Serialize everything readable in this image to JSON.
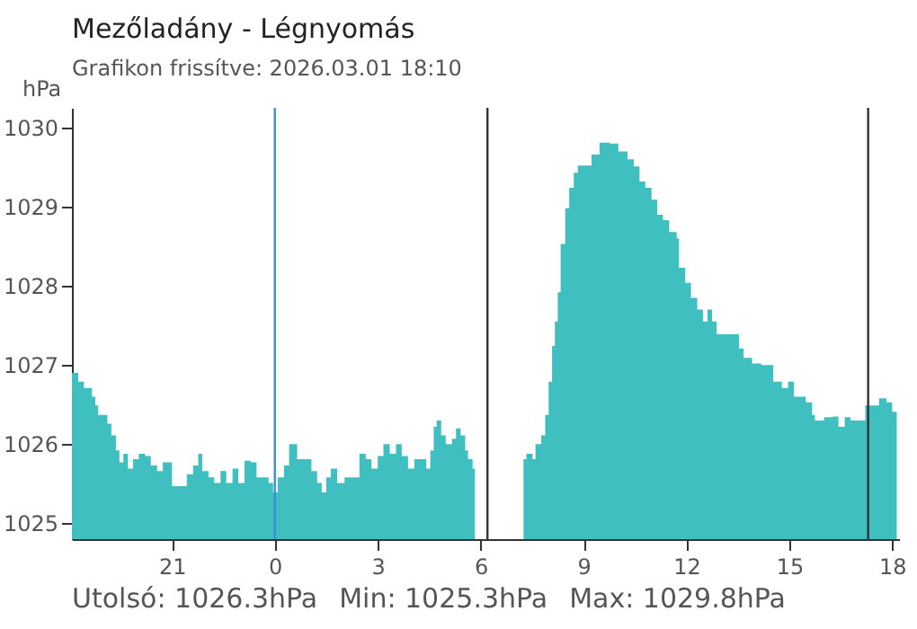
{
  "chart_data": {
    "type": "area",
    "title": "Mezőladány - Légnyomás",
    "subtitle": "Grafikon frissítve: 2026.03.01 18:10",
    "ylabel": "hPa",
    "annotations": [
      "Utolsó: 1026.3hPa",
      "Min: 1025.3hPa",
      "Max: 1029.8hPa"
    ],
    "x": [
      "2026-02-28T18:05",
      "2026-02-28T18:11",
      "2026-02-28T18:16",
      "2026-02-28T18:26",
      "2026-02-28T18:37",
      "2026-02-28T18:40",
      "2026-02-28T18:46",
      "2026-02-28T18:51",
      "2026-02-28T18:58",
      "2026-02-28T19:07",
      "2026-02-28T19:14",
      "2026-02-28T19:22",
      "2026-02-28T19:28",
      "2026-02-28T19:35",
      "2026-02-28T19:43",
      "2026-02-28T19:52",
      "2026-02-28T20:02",
      "2026-02-28T20:13",
      "2026-02-28T20:23",
      "2026-02-28T20:34",
      "2026-02-28T20:44",
      "2026-02-28T21:00",
      "2026-02-28T21:16",
      "2026-02-28T21:26",
      "2026-02-28T21:37",
      "2026-02-28T21:46",
      "2026-02-28T21:53",
      "2026-02-28T22:04",
      "2026-02-28T22:14",
      "2026-02-28T22:25",
      "2026-02-28T22:35",
      "2026-02-28T22:46",
      "2026-02-28T22:56",
      "2026-02-28T23:07",
      "2026-02-28T23:18",
      "2026-02-28T23:28",
      "2026-02-28T23:39",
      "2026-02-28T23:49",
      "2026-02-28T23:57",
      "2026-03-01T00:05",
      "2026-03-01T00:16",
      "2026-03-01T00:25",
      "2026-03-01T00:32",
      "2026-03-01T00:39",
      "2026-03-01T00:53",
      "2026-03-01T01:04",
      "2026-03-01T01:14",
      "2026-03-01T01:22",
      "2026-03-01T01:30",
      "2026-03-01T01:38",
      "2026-03-01T01:49",
      "2026-03-01T02:02",
      "2026-03-01T02:17",
      "2026-03-01T02:28",
      "2026-03-01T02:39",
      "2026-03-01T02:49",
      "2026-03-01T03:00",
      "2026-03-01T03:10",
      "2026-03-01T03:21",
      "2026-03-01T03:32",
      "2026-03-01T03:42",
      "2026-03-01T03:53",
      "2026-03-01T04:04",
      "2026-03-01T04:14",
      "2026-03-01T04:25",
      "2026-03-01T04:32",
      "2026-03-01T04:38",
      "2026-03-01T04:43",
      "2026-03-01T04:51",
      "2026-03-01T04:59",
      "2026-03-01T05:10",
      "2026-03-01T05:17",
      "2026-03-01T05:25",
      "2026-03-01T05:33",
      "2026-03-01T05:38",
      "2026-03-01T05:46",
      "2026-03-01T05:50",
      "2026-03-01T06:30",
      "2026-03-01T07:15",
      "2026-03-01T07:20",
      "2026-03-01T07:31",
      "2026-03-01T07:36",
      "2026-03-01T07:46",
      "2026-03-01T07:53",
      "2026-03-01T07:59",
      "2026-03-01T08:05",
      "2026-03-01T08:10",
      "2026-03-01T08:15",
      "2026-03-01T08:20",
      "2026-03-01T08:28",
      "2026-03-01T08:35",
      "2026-03-01T08:43",
      "2026-03-01T08:50",
      "2026-03-01T09:04",
      "2026-03-01T09:14",
      "2026-03-01T09:28",
      "2026-03-01T09:46",
      "2026-03-01T10:01",
      "2026-03-01T10:17",
      "2026-03-01T10:28",
      "2026-03-01T10:38",
      "2026-03-01T10:48",
      "2026-03-01T10:59",
      "2026-03-01T11:09",
      "2026-03-01T11:19",
      "2026-03-01T11:30",
      "2026-03-01T11:43",
      "2026-03-01T11:47",
      "2026-03-01T11:58",
      "2026-03-01T12:08",
      "2026-03-01T12:19",
      "2026-03-01T12:29",
      "2026-03-01T12:37",
      "2026-03-01T12:45",
      "2026-03-01T12:53",
      "2026-03-01T13:08",
      "2026-03-01T13:24",
      "2026-03-01T13:32",
      "2026-03-01T13:40",
      "2026-03-01T13:55",
      "2026-03-01T14:11",
      "2026-03-01T14:26",
      "2026-03-01T14:32",
      "2026-03-01T14:47",
      "2026-03-01T14:58",
      "2026-03-01T15:08",
      "2026-03-01T15:19",
      "2026-03-01T15:29",
      "2026-03-01T15:40",
      "2026-03-01T15:45",
      "2026-03-01T16:01",
      "2026-03-01T16:16",
      "2026-03-01T16:26",
      "2026-03-01T16:37",
      "2026-03-01T16:47",
      "2026-03-01T17:03",
      "2026-03-01T17:13",
      "2026-03-01T17:26",
      "2026-03-01T17:37",
      "2026-03-01T17:50",
      "2026-03-01T18:00",
      "2026-03-01T18:08"
    ],
    "series": [
      {
        "color": "#40bfc1",
        "values": [
          1026.9,
          1026.9,
          1026.79,
          1026.71,
          1026.71,
          1026.6,
          1026.49,
          1026.37,
          1026.37,
          1026.26,
          1026.11,
          1025.92,
          1025.77,
          1025.88,
          1025.69,
          1025.81,
          1025.88,
          1025.85,
          1025.73,
          1025.66,
          1025.77,
          1025.47,
          1025.47,
          1025.62,
          1025.73,
          1025.88,
          1025.66,
          1025.58,
          1025.51,
          1025.66,
          1025.51,
          1025.69,
          1025.51,
          1025.79,
          1025.77,
          1025.58,
          1025.58,
          1025.51,
          1025.39,
          1025.58,
          1025.73,
          1026.0,
          1026.0,
          1025.81,
          1025.81,
          1025.66,
          1025.51,
          1025.39,
          1025.58,
          1025.69,
          1025.51,
          1025.58,
          1025.58,
          1025.88,
          1025.81,
          1025.69,
          1025.85,
          1026.0,
          1025.88,
          1026.0,
          1025.85,
          1025.69,
          1025.81,
          1025.81,
          1025.69,
          1025.92,
          1026.22,
          1026.3,
          1026.11,
          1026.0,
          1026.07,
          1026.2,
          1026.11,
          1025.92,
          1025.81,
          1025.69,
          1025.69,
          null,
          1025.81,
          1025.88,
          1025.81,
          1026.0,
          1026.11,
          1026.37,
          1026.79,
          1027.24,
          1027.55,
          1027.92,
          1028.53,
          1028.98,
          1029.24,
          1029.43,
          1029.52,
          1029.52,
          1029.66,
          1029.81,
          1029.8,
          1029.7,
          1029.6,
          1029.51,
          1029.32,
          1029.24,
          1029.09,
          1028.9,
          1028.83,
          1028.68,
          1028.6,
          1028.23,
          1028.04,
          1027.85,
          1027.7,
          1027.55,
          1027.7,
          1027.55,
          1027.39,
          1027.39,
          1027.39,
          1027.21,
          1027.09,
          1027.02,
          1027.0,
          1027.0,
          1026.79,
          1026.71,
          1026.79,
          1026.6,
          1026.6,
          1026.53,
          1026.37,
          1026.3,
          1026.34,
          1026.35,
          1026.22,
          1026.34,
          1026.3,
          1026.3,
          1026.49,
          1026.49,
          1026.58,
          1026.53,
          1026.41,
          1026.3
        ]
      }
    ],
    "xlim": [
      "2026-02-28T18:05",
      "2026-03-01T18:12"
    ],
    "xticks": [
      {
        "value": "2026-02-28T21:00",
        "label": "21"
      },
      {
        "value": "2026-03-01T00:00",
        "label": "0"
      },
      {
        "value": "2026-03-01T03:00",
        "label": "3"
      },
      {
        "value": "2026-03-01T06:00",
        "label": "6"
      },
      {
        "value": "2026-03-01T09:00",
        "label": "9"
      },
      {
        "value": "2026-03-01T12:00",
        "label": "12"
      },
      {
        "value": "2026-03-01T15:00",
        "label": "15"
      },
      {
        "value": "2026-03-01T18:00",
        "label": "18"
      }
    ],
    "ylim": [
      1024.8,
      1030.25
    ],
    "yticks": [
      1025,
      1026,
      1027,
      1028,
      1029,
      1030
    ],
    "ref_lines": [
      {
        "axis": "x",
        "value": "2026-03-01T00:00",
        "color": "#3a8fd0"
      },
      {
        "axis": "x",
        "value": "2026-03-01T06:12",
        "color": "#333333"
      },
      {
        "axis": "x",
        "value": "2026-03-01T17:18",
        "color": "#333333"
      }
    ]
  }
}
